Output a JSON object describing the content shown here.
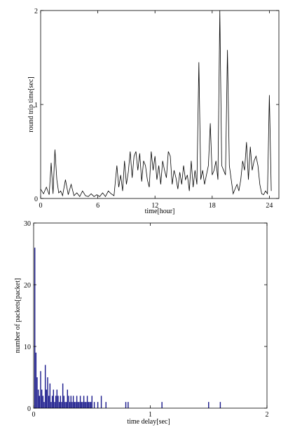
{
  "chart_data": [
    {
      "type": "line",
      "title": "",
      "xlabel": "time[hour]",
      "ylabel": "round trip time[sec]",
      "xlim": [
        0,
        25
      ],
      "ylim": [
        0,
        2
      ],
      "xticks": [
        0,
        6,
        12,
        18,
        24
      ],
      "yticks": [
        0,
        1,
        2
      ],
      "grid": false,
      "line_color": "#000000",
      "series": [
        {
          "x": [
            0,
            0.3,
            0.6,
            0.9,
            1.1,
            1.3,
            1.5,
            1.7,
            1.9,
            2.1,
            2.3,
            2.6,
            2.9,
            3.2,
            3.5,
            3.8,
            4.1,
            4.4,
            4.7,
            5.0,
            5.3,
            5.6,
            5.9,
            6.2,
            6.5,
            6.8,
            7.1,
            7.4,
            7.7,
            8.0,
            8.2,
            8.4,
            8.6,
            8.8,
            9.0,
            9.2,
            9.4,
            9.6,
            9.8,
            10.0,
            10.2,
            10.4,
            10.6,
            10.8,
            11.0,
            11.2,
            11.4,
            11.6,
            11.8,
            12.0,
            12.2,
            12.4,
            12.6,
            12.8,
            13.0,
            13.2,
            13.4,
            13.6,
            13.8,
            14.0,
            14.2,
            14.4,
            14.6,
            14.8,
            15.0,
            15.2,
            15.4,
            15.6,
            15.8,
            16.0,
            16.2,
            16.4,
            16.6,
            16.8,
            17.0,
            17.2,
            17.4,
            17.6,
            17.8,
            18.0,
            18.2,
            18.4,
            18.6,
            18.8,
            19.0,
            19.2,
            19.4,
            19.6,
            19.8,
            20.0,
            20.2,
            20.4,
            20.6,
            20.8,
            21.0,
            21.2,
            21.4,
            21.6,
            21.8,
            22.0,
            22.2,
            22.4,
            22.6,
            22.8,
            23.0,
            23.2,
            23.4,
            23.6,
            23.8,
            24.0,
            24.2
          ],
          "y": [
            0.1,
            0.05,
            0.12,
            0.04,
            0.38,
            0.05,
            0.52,
            0.2,
            0.06,
            0.08,
            0.03,
            0.2,
            0.04,
            0.15,
            0.03,
            0.06,
            0.02,
            0.08,
            0.03,
            0.02,
            0.05,
            0.02,
            0.04,
            0.02,
            0.06,
            0.02,
            0.08,
            0.05,
            0.03,
            0.35,
            0.12,
            0.25,
            0.08,
            0.4,
            0.15,
            0.28,
            0.5,
            0.22,
            0.45,
            0.5,
            0.3,
            0.48,
            0.18,
            0.4,
            0.35,
            0.2,
            0.12,
            0.5,
            0.3,
            0.45,
            0.2,
            0.35,
            0.15,
            0.4,
            0.3,
            0.22,
            0.5,
            0.45,
            0.15,
            0.3,
            0.22,
            0.1,
            0.28,
            0.15,
            0.35,
            0.2,
            0.25,
            0.08,
            0.4,
            0.12,
            0.3,
            0.15,
            1.45,
            0.2,
            0.3,
            0.15,
            0.25,
            0.35,
            0.8,
            0.25,
            0.3,
            0.4,
            0.2,
            2.0,
            0.35,
            0.3,
            0.25,
            1.58,
            0.35,
            0.2,
            0.05,
            0.1,
            0.15,
            0.08,
            0.2,
            0.4,
            0.3,
            0.6,
            0.2,
            0.55,
            0.3,
            0.4,
            0.45,
            0.35,
            0.15,
            0.05,
            0.04,
            0.08,
            0.05,
            1.1,
            0.08
          ]
        }
      ]
    },
    {
      "type": "bar",
      "title": "",
      "xlabel": "time delay[sec]",
      "ylabel": "number of packets[packet]",
      "xlim": [
        0,
        2
      ],
      "ylim": [
        0,
        30
      ],
      "xticks": [
        0,
        1,
        2
      ],
      "yticks": [
        0,
        10,
        20,
        30
      ],
      "grid": false,
      "bar_color": "#1a1a8c",
      "series": [
        {
          "x": [
            0.01,
            0.02,
            0.03,
            0.04,
            0.05,
            0.06,
            0.07,
            0.08,
            0.09,
            0.1,
            0.11,
            0.12,
            0.13,
            0.14,
            0.15,
            0.16,
            0.17,
            0.18,
            0.19,
            0.2,
            0.21,
            0.22,
            0.23,
            0.24,
            0.25,
            0.26,
            0.27,
            0.28,
            0.29,
            0.3,
            0.31,
            0.32,
            0.33,
            0.34,
            0.35,
            0.36,
            0.37,
            0.38,
            0.39,
            0.4,
            0.41,
            0.42,
            0.43,
            0.44,
            0.45,
            0.46,
            0.47,
            0.48,
            0.49,
            0.5,
            0.52,
            0.55,
            0.58,
            0.62,
            0.79,
            0.81,
            1.1,
            1.5,
            1.6
          ],
          "y": [
            26,
            9,
            5,
            3,
            2,
            6,
            3,
            2,
            1,
            7,
            3,
            5,
            2,
            4,
            1,
            2,
            3,
            1,
            2,
            3,
            2,
            1,
            2,
            1,
            4,
            2,
            1,
            1,
            3,
            2,
            1,
            2,
            1,
            2,
            1,
            1,
            2,
            1,
            1,
            2,
            1,
            1,
            2,
            1,
            1,
            2,
            1,
            1,
            1,
            2,
            1,
            1,
            2,
            1,
            1,
            1,
            1,
            1,
            1
          ]
        }
      ]
    }
  ]
}
